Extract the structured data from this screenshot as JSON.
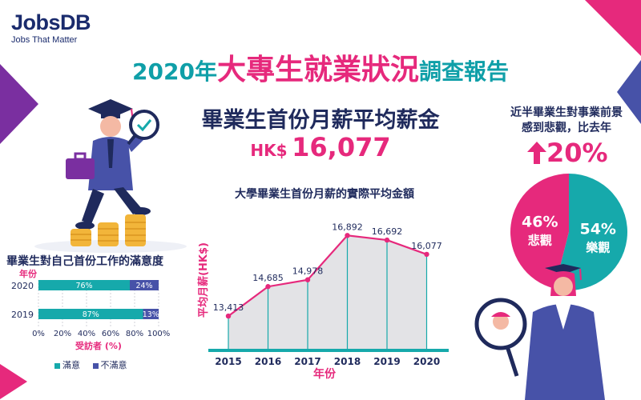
{
  "logo": {
    "brand": "JobsDB",
    "tagline": "Jobs That Matter"
  },
  "title": {
    "part1": "2020年",
    "part2": "大專生就業狀況",
    "part3": "調查報告"
  },
  "salary": {
    "heading": "畢業生首份月薪平均薪金",
    "currency": "HK$",
    "value": "16,077"
  },
  "pessimism": {
    "line1": "近半畢業生對事業前景",
    "line2": "感到悲觀，比去年",
    "change": "20%"
  },
  "colors": {
    "pink": "#e6297c",
    "teal": "#16a9ab",
    "navy": "#1f2a5c",
    "indigo": "#4752a8"
  },
  "icons": [
    "jobsdb-logo",
    "up-arrow-icon",
    "graduate-illustration",
    "coins-illustration",
    "mirror-illustration"
  ],
  "chart_data": [
    {
      "type": "pie",
      "labels": [
        "悲觀",
        "樂觀"
      ],
      "values": [
        46,
        54
      ],
      "value_labels": [
        "46%",
        "54%"
      ],
      "colors": [
        "#e6297c",
        "#16a9ab"
      ]
    },
    {
      "type": "line",
      "title": "大學畢業生首份月薪的實際平均金額",
      "xlabel": "年份",
      "ylabel": "平均月薪(HK$)",
      "x": [
        "2015",
        "2016",
        "2017",
        "2018",
        "2019",
        "2020"
      ],
      "values": [
        13413,
        14685,
        14978,
        16892,
        16692,
        16077
      ],
      "value_labels": [
        "13,413",
        "14,685",
        "14,978",
        "16,892",
        "16,692",
        "16,077"
      ],
      "ylim": [
        12000,
        17800
      ],
      "line_color": "#e6297c",
      "area_color": "#e3e3e6"
    },
    {
      "type": "bar",
      "orientation": "horizontal",
      "stacked": true,
      "title": "畢業生對自己首份工作的滿意度",
      "category_header": "年份",
      "categories": [
        "2020",
        "2019"
      ],
      "series": [
        {
          "name": "滿意",
          "values": [
            76,
            87
          ],
          "labels": [
            "76%",
            "87%"
          ],
          "color": "#16a9ab"
        },
        {
          "name": "不滿意",
          "values": [
            24,
            13
          ],
          "labels": [
            "24%",
            "13%"
          ],
          "color": "#4752a8"
        }
      ],
      "xlabel": "受訪者 (%)",
      "xticks": [
        "0%",
        "20%",
        "40%",
        "60%",
        "80%",
        "100%"
      ],
      "xlim": [
        0,
        100
      ]
    }
  ]
}
